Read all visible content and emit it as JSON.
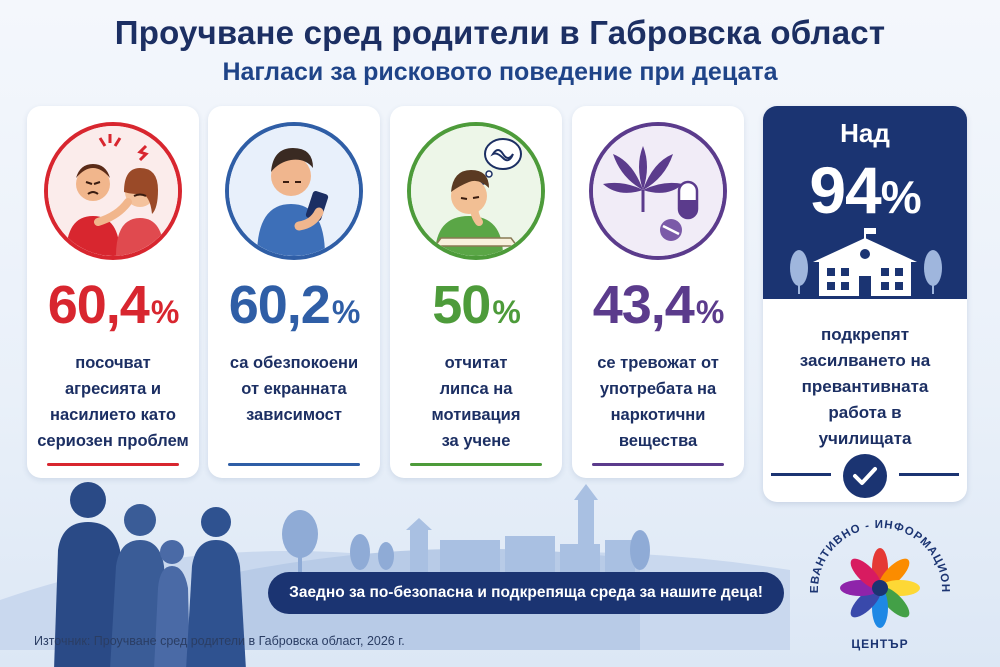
{
  "title": "Проучване сред родители в Габровска област",
  "subtitle": "Нагласи за рисковото поведение при децата",
  "cards": [
    {
      "value": "60,4",
      "unit": "%",
      "color": "#d8262f",
      "desc": [
        "посочват",
        "агресията и",
        "насилието като",
        "сериозен проблем"
      ],
      "icon": "conflict-icon"
    },
    {
      "value": "60,2",
      "unit": "%",
      "color": "#2f5ea6",
      "desc": [
        "са обезпокоени",
        "от екранната",
        "зависимост"
      ],
      "icon": "smartphone-child-icon"
    },
    {
      "value": "50",
      "unit": "%",
      "color": "#4d9b3a",
      "desc": [
        "отчитат",
        "липса на",
        "мотивация",
        "за учене"
      ],
      "icon": "bored-student-icon"
    },
    {
      "value": "43,4",
      "unit": "%",
      "color": "#5b3b8c",
      "desc": [
        "се тревожат от",
        "употребата на",
        "наркотични",
        "вещества"
      ],
      "icon": "drugs-icon"
    }
  ],
  "highlight": {
    "prefix": "Над",
    "value": "94",
    "unit": "%",
    "desc": [
      "подкрепят",
      "засилването на",
      "превантивната",
      "работа в",
      "училищата"
    ],
    "icon": "school-building-icon",
    "accent": "#1b3472"
  },
  "banner": "Заедно за по-безопасна и подкрепяща среда за нашите деца!",
  "source": "Източник: Проучване сред родители в Габровска област, 2026 г.",
  "logo": {
    "top_text": "ПРЕВАНТИВНО - ИНФОРМАЦИОНЕН",
    "bottom_text": "ЦЕНТЪР"
  }
}
